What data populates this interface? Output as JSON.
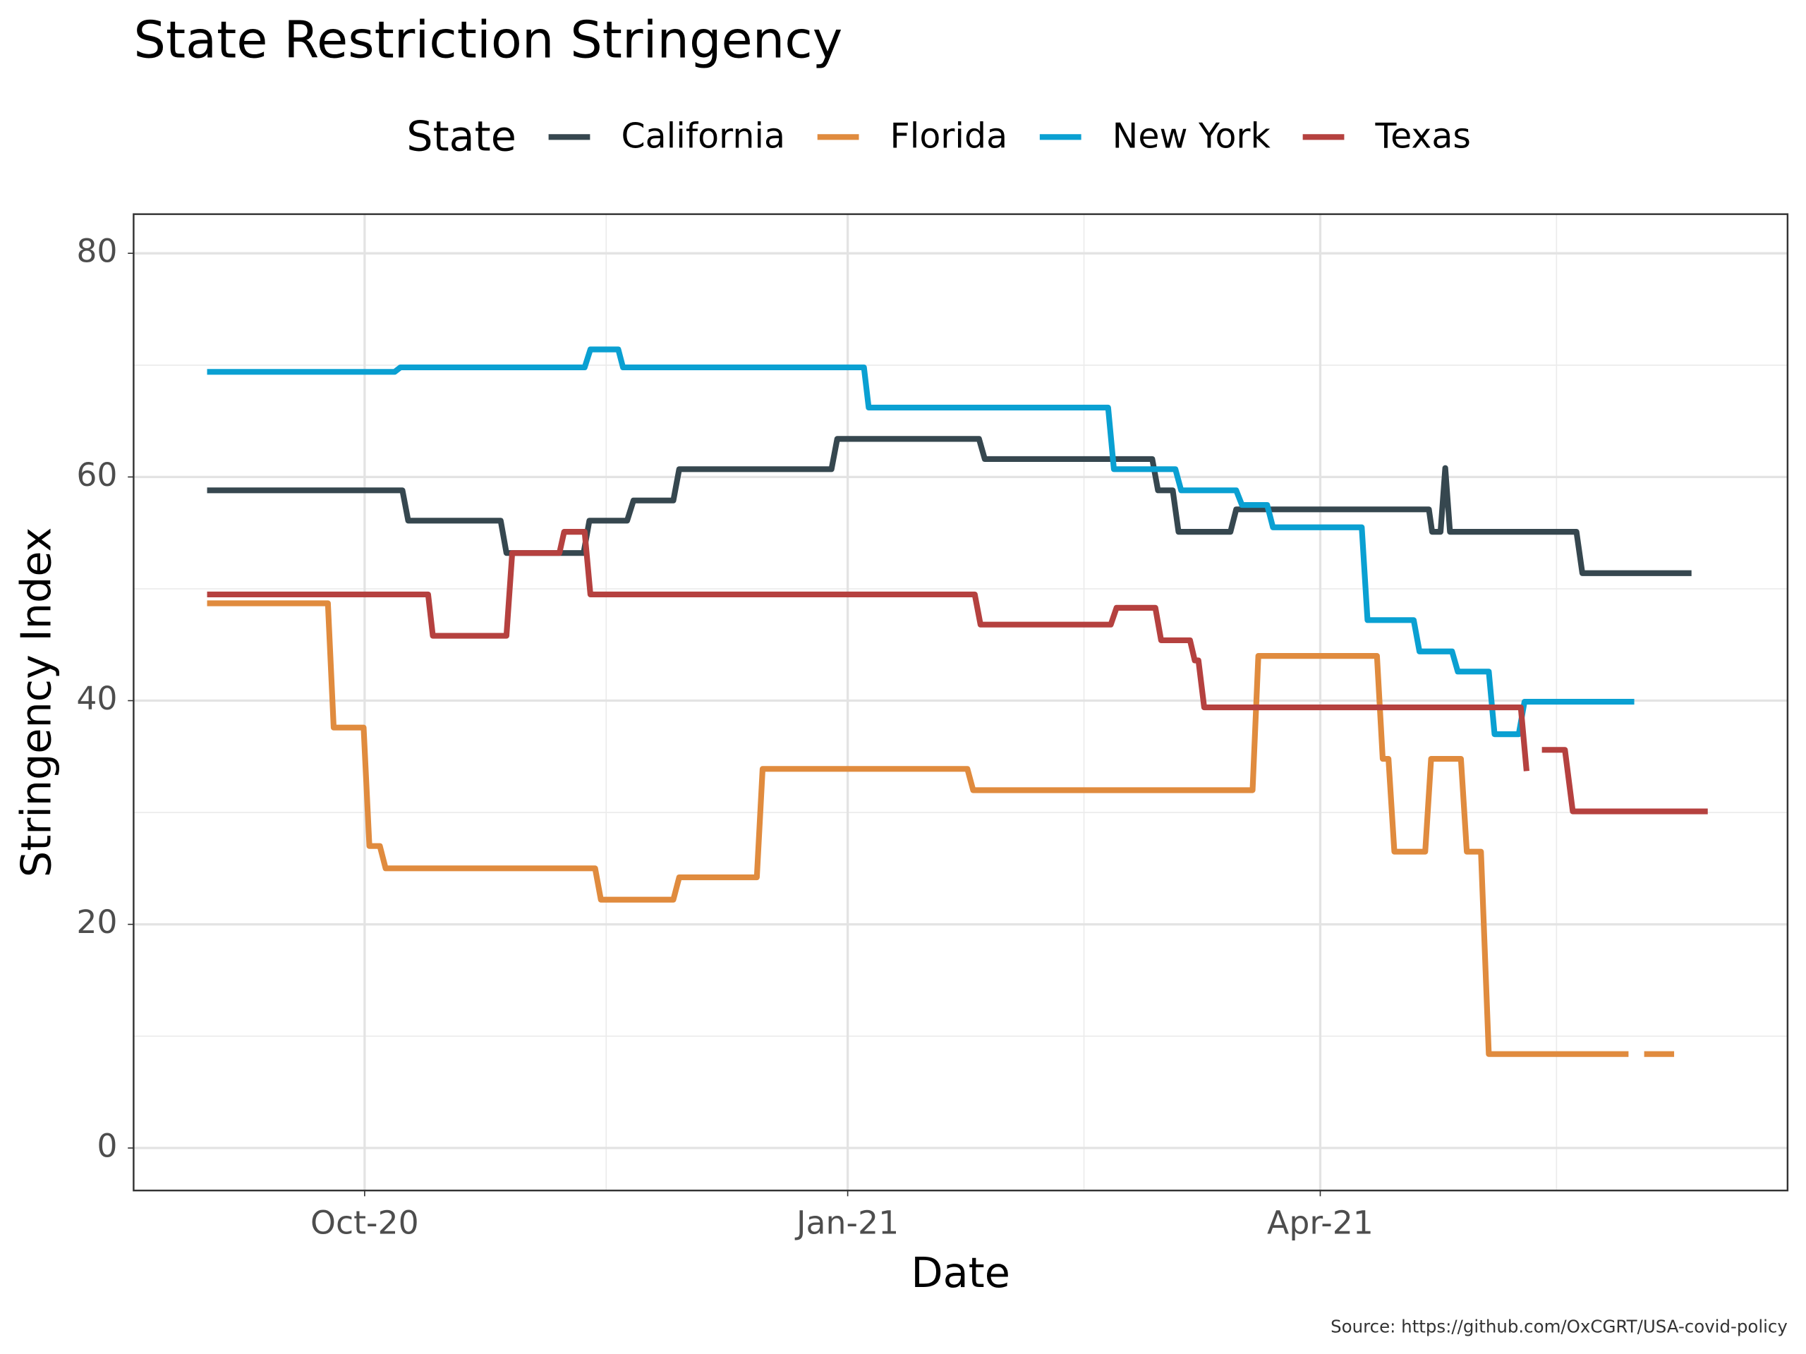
{
  "chart_data": {
    "type": "line",
    "title": "State Restriction Stringency",
    "x_label": "Date",
    "y_label": "Stringency Index",
    "legend_title": "State",
    "caption": "Source: https://github.com/OxCGRT/USA-covid-policy",
    "legend": "top",
    "grid": true,
    "xlim": [
      -44,
      271
    ],
    "ylim": [
      -3.8,
      83.5
    ],
    "xticks": [
      {
        "value": 0,
        "label": "Oct-20"
      },
      {
        "value": 92,
        "label": "Jan-21"
      },
      {
        "value": 182,
        "label": "Apr-21"
      }
    ],
    "yticks": [
      0,
      20,
      40,
      60,
      80
    ],
    "series": [
      {
        "name": "California",
        "color": "#36474f",
        "x": [
          -30,
          7.2,
          8.3,
          25.9,
          27,
          41.7,
          42.8,
          50,
          51.2,
          58.8,
          59.9,
          88.9,
          90,
          117,
          118.1,
          150,
          151.1,
          153.9,
          155,
          164.9,
          166,
          202.7,
          203.3,
          204.9,
          205.8,
          206.7,
          230.8,
          231.9,
          252.7
        ],
        "values": [
          58.8,
          58.8,
          56.1,
          56.1,
          53.2,
          53.2,
          56.1,
          56.1,
          57.9,
          57.9,
          60.7,
          60.7,
          63.4,
          63.4,
          61.6,
          61.6,
          58.8,
          58.8,
          55.1,
          55.1,
          57.1,
          57.1,
          55.1,
          55.1,
          60.8,
          55.1,
          55.1,
          51.4,
          51.4
        ]
      },
      {
        "name": "Florida",
        "color": "#e08b3e",
        "x": [
          -30,
          -7,
          -5.9,
          -0.2,
          0.9,
          2.9,
          4,
          43.9,
          45,
          58.8,
          59.9,
          74.7,
          75.8,
          114.8,
          115.9,
          169.1,
          170.2,
          192.8,
          193.9,
          195,
          196.1,
          202,
          203.1,
          208.8,
          209.9,
          212.6,
          214.1,
          240.7,
          242.2,
          243.7,
          249.4
        ],
        "values": [
          48.7,
          48.7,
          37.6,
          37.6,
          27.0,
          27.0,
          25.0,
          25.0,
          22.2,
          22.2,
          24.2,
          24.2,
          33.9,
          33.9,
          32.0,
          32.0,
          44.0,
          44.0,
          34.8,
          34.8,
          26.5,
          26.5,
          34.8,
          34.8,
          26.5,
          26.5,
          8.4,
          8.4,
          null,
          8.4,
          8.4
        ]
      },
      {
        "name": "New York",
        "color": "#0aa0d2",
        "x": [
          -30,
          5.7,
          6.8,
          41.9,
          43,
          48.3,
          49.2,
          95.1,
          96,
          141.6,
          142.7,
          154.4,
          155.5,
          166,
          167.1,
          171.9,
          173,
          189.9,
          191,
          199.8,
          200.9,
          207.1,
          208.2,
          214.1,
          215.2,
          219.8,
          220.9,
          241.8
        ],
        "values": [
          69.4,
          69.4,
          69.8,
          69.8,
          71.4,
          71.4,
          69.8,
          69.8,
          66.2,
          66.2,
          60.7,
          60.7,
          58.8,
          58.8,
          57.5,
          57.5,
          55.5,
          55.5,
          47.2,
          47.2,
          44.4,
          44.4,
          42.6,
          42.6,
          37.0,
          37.0,
          39.9,
          39.9
        ]
      },
      {
        "name": "Texas",
        "color": "#b5413f",
        "x": [
          -30,
          12.1,
          13,
          27,
          28.1,
          37.1,
          38,
          41.9,
          43,
          116.2,
          117.3,
          142.1,
          143.2,
          150.6,
          151.7,
          157.2,
          158.1,
          158.8,
          159.9,
          220.2,
          221.3,
          222.7,
          224.2,
          228.6,
          230.1,
          255.8
        ],
        "values": [
          49.5,
          49.5,
          45.8,
          45.8,
          53.2,
          53.2,
          55.1,
          55.1,
          49.5,
          49.5,
          46.8,
          46.8,
          48.3,
          48.3,
          45.4,
          45.4,
          43.6,
          43.6,
          39.4,
          39.4,
          33.7,
          null,
          35.6,
          35.6,
          30.1,
          30.1
        ]
      }
    ]
  }
}
